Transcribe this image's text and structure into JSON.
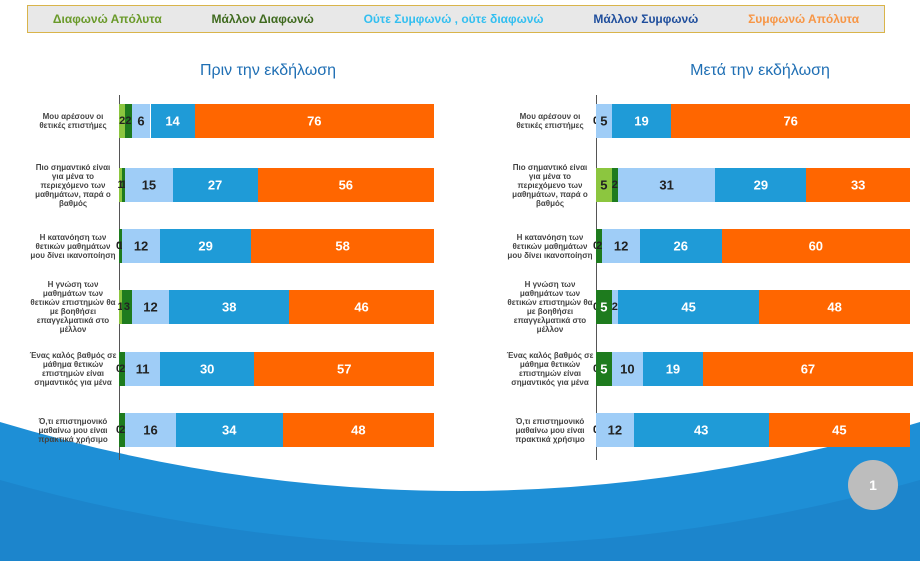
{
  "chart_data": [
    {
      "type": "bar",
      "orientation": "horizontal",
      "stacked": true,
      "title": "Πριν την εκδήλωση",
      "categories": [
        "Μου αρέσουν οι θετικές επιστήμες",
        "Πιο σημαντικό είναι για μένα το περιεχόμενο των μαθημάτων, παρά ο βαθμός",
        "Η κατανόηση των θετικών μαθημάτων μου δίνει ικανοποίηση",
        "Η γνώση των μαθημάτων των θετικών επιστημών θα με βοηθήσει επαγγελματικά στο μέλλον",
        "Ένας καλός βαθμός σε μάθημα θετικών επιστημών είναι σημαντικός για μένα",
        "Ό,τι επιστημονικό μαθαίνω μου είναι πρακτικά χρήσιμο"
      ],
      "xlim": [
        0,
        100
      ],
      "series": [
        {
          "name": "Διαφωνώ Απόλυτα",
          "color": "#8cc63f",
          "values": [
            2,
            1,
            0,
            1,
            0,
            0
          ]
        },
        {
          "name": "Μάλλον Διαφωνώ",
          "color": "#1e7b1e",
          "values": [
            2,
            1,
            1,
            3,
            2,
            2
          ]
        },
        {
          "name": "Ούτε Συμφωνώ , ούτε διαφωνώ",
          "color": "#9fcdf7",
          "values": [
            6,
            15,
            12,
            12,
            11,
            16
          ]
        },
        {
          "name": "Μάλλον Συμφωνώ",
          "color": "#1f9bd7",
          "values": [
            14,
            27,
            29,
            38,
            30,
            34
          ]
        },
        {
          "name": "Συμφωνώ Απόλυτα",
          "color": "#ff6600",
          "values": [
            76,
            56,
            58,
            46,
            57,
            48
          ]
        }
      ]
    },
    {
      "type": "bar",
      "orientation": "horizontal",
      "stacked": true,
      "title": "Μετά την εκδήλωση",
      "categories": [
        "Μου αρέσουν οι θετικές επιστήμες",
        "Πιο σημαντικό είναι για μένα το περιεχόμενο των μαθημάτων, παρά ο βαθμός",
        "Η κατανόηση των θετικών μαθημάτων μου δίνει ικανοποίηση",
        "Η γνώση των μαθημάτων των θετικών επιστημών θα με βοηθήσει επαγγελματικά στο μέλλον",
        "Ένας καλός βαθμός σε μάθημα θετικών επιστημών είναι σημαντικός για μένα",
        "Ό,τι επιστημονικό μαθαίνω μου είναι πρακτικά χρήσιμο"
      ],
      "xlim": [
        0,
        100
      ],
      "series": [
        {
          "values": [
            0,
            5,
            0,
            0,
            0,
            0
          ]
        },
        {
          "values": [
            0,
            2,
            2,
            5,
            5,
            0
          ]
        },
        {
          "values": [
            5,
            31,
            12,
            2,
            10,
            12
          ]
        },
        {
          "values": [
            19,
            29,
            26,
            45,
            19,
            43
          ]
        },
        {
          "values": [
            76,
            33,
            60,
            48,
            67,
            45
          ]
        }
      ]
    }
  ],
  "slide_number": "1"
}
